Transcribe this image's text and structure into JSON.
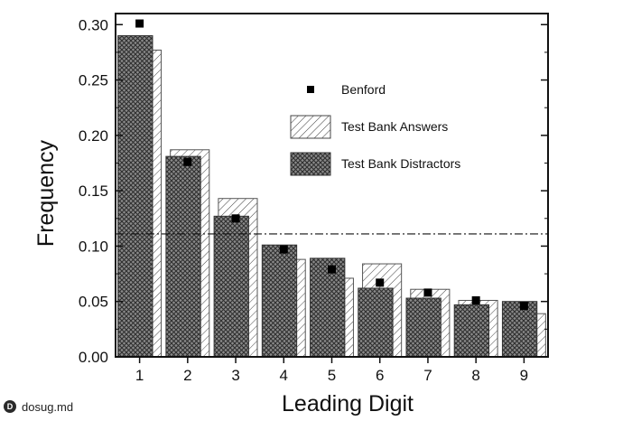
{
  "chart_data": {
    "type": "bar",
    "categories": [
      "1",
      "2",
      "3",
      "4",
      "5",
      "6",
      "7",
      "8",
      "9"
    ],
    "series": [
      {
        "name": "Test Bank Answers",
        "values": [
          0.277,
          0.187,
          0.143,
          0.088,
          0.071,
          0.084,
          0.061,
          0.051,
          0.039
        ]
      },
      {
        "name": "Test Bank Distractors",
        "values": [
          0.29,
          0.181,
          0.127,
          0.101,
          0.089,
          0.062,
          0.053,
          0.047,
          0.05
        ]
      },
      {
        "name": "Benford",
        "values": [
          0.301,
          0.176,
          0.125,
          0.097,
          0.079,
          0.067,
          0.058,
          0.051,
          0.046
        ]
      }
    ],
    "reference_line": 0.111,
    "xlabel": "Leading Digit",
    "ylabel": "Frequency",
    "ylim": [
      0,
      0.31
    ],
    "yticks": [
      "0.00",
      "0.05",
      "0.10",
      "0.15",
      "0.20",
      "0.25",
      "0.30"
    ],
    "legend": {
      "position": "top-right",
      "entries": [
        "Benford",
        "Test Bank Answers",
        "Test Bank Distractors"
      ]
    },
    "grid": false
  },
  "watermark": {
    "text": "dosug.md"
  }
}
